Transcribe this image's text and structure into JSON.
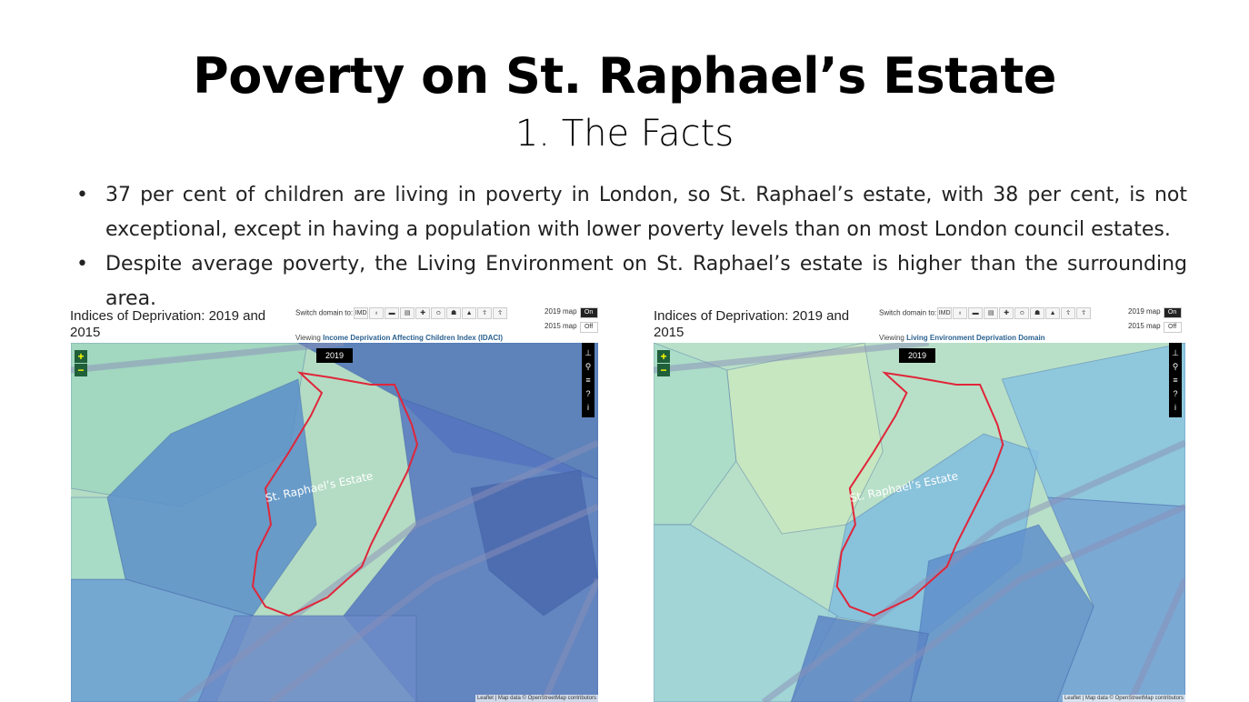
{
  "slide": {
    "title": "Poverty on St. Raphael’s Estate",
    "subtitle": "1. The Facts",
    "bullets": [
      "37 per cent of children are living in poverty in London, so St. Raphael’s estate, with 38 per cent, is not exceptional, except in having a population with lower poverty levels than on most London council estates.",
      "Despite average poverty, the Living Environment on St. Raphael’s estate is higher than the surrounding area."
    ]
  },
  "maps": [
    {
      "title": "Indices of Deprivation: 2019 and 2015",
      "switch_label": "Switch domain to:",
      "domains": [
        "IMD",
        "income",
        "employment",
        "education",
        "health",
        "crime",
        "housing",
        "environment",
        "children",
        "older people"
      ],
      "viewing_prefix": "Viewing",
      "viewing_domain": "Income Deprivation Affecting Children Index (IDACI)",
      "toggle_2019_label": "2019 map",
      "toggle_2019_value": "On",
      "toggle_2015_label": "2015 map",
      "toggle_2015_value": "Off",
      "year_badge": "2019",
      "zoom_in": "+",
      "zoom_out": "−",
      "estate_label": "St. Raphael’s Estate",
      "attribution": "Leaflet | Map data © OpenStreetMap contributors",
      "outline_color": "#e0263a"
    },
    {
      "title": "Indices of Deprivation: 2019 and 2015",
      "switch_label": "Switch domain to:",
      "domains": [
        "IMD",
        "income",
        "employment",
        "education",
        "health",
        "crime",
        "housing",
        "environment",
        "children",
        "older people"
      ],
      "viewing_prefix": "Viewing",
      "viewing_domain": "Living Environment Deprivation Domain",
      "toggle_2019_label": "2019 map",
      "toggle_2019_value": "On",
      "toggle_2015_label": "2015 map",
      "toggle_2015_value": "Off",
      "year_badge": "2019",
      "zoom_in": "+",
      "zoom_out": "−",
      "estate_label": "St. Raphael’s Estate",
      "attribution": "Leaflet | Map data © OpenStreetMap contributors",
      "outline_color": "#e0263a"
    }
  ]
}
